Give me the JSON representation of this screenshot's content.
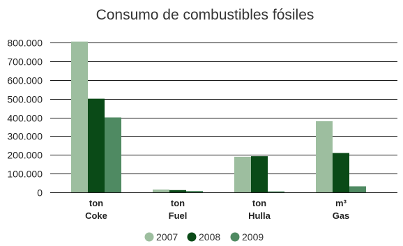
{
  "chart_data": {
    "type": "bar",
    "title": "Consumo de combustibles fósiles",
    "xlabel": "",
    "ylabel": "",
    "ylim": [
      0,
      800000
    ],
    "yticks": [
      "0",
      "100.000",
      "200.000",
      "300.000",
      "400.000",
      "500.000",
      "600.000",
      "700.000",
      "800.000"
    ],
    "categories": [
      {
        "unit": "ton",
        "name": "Coke"
      },
      {
        "unit": "ton",
        "name": "Fuel"
      },
      {
        "unit": "ton",
        "name": "Hulla"
      },
      {
        "unit": "m³",
        "name": "Gas"
      }
    ],
    "series": [
      {
        "name": "2007",
        "color": "#9dbe9f",
        "values": [
          805000,
          15000,
          190000,
          380000
        ]
      },
      {
        "name": "2008",
        "color": "#0a4a17",
        "values": [
          500000,
          12000,
          193000,
          210000
        ]
      },
      {
        "name": "2009",
        "color": "#4f8a62",
        "values": [
          400000,
          7000,
          5000,
          32000
        ]
      }
    ],
    "grid": true,
    "legend_position": "bottom"
  }
}
